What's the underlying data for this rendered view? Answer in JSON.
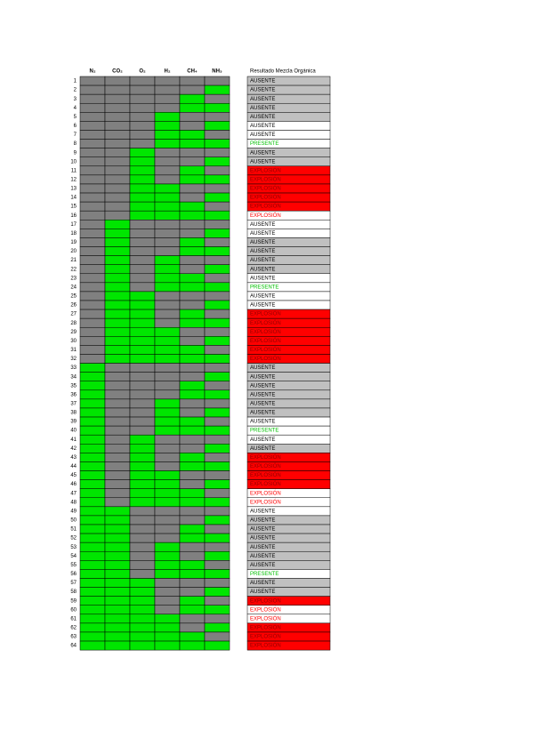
{
  "table": {
    "headers": [
      "N₂",
      "CO₂",
      "O₂",
      "H₂",
      "CH₄",
      "NH₃"
    ],
    "result_header": "Resultado Mezcla Orgánica",
    "colors": {
      "on": "#00e600",
      "off": "#808080"
    },
    "rows": [
      {
        "n": 1,
        "cells": [
          0,
          0,
          0,
          0,
          0,
          0
        ],
        "result": "AUSENTE",
        "bg": "#c0c0c0",
        "fg": "#000000"
      },
      {
        "n": 2,
        "cells": [
          0,
          0,
          0,
          0,
          0,
          1
        ],
        "result": "AUSENTE",
        "bg": "#c0c0c0",
        "fg": "#000000"
      },
      {
        "n": 3,
        "cells": [
          0,
          0,
          0,
          0,
          1,
          0
        ],
        "result": "AUSENTE",
        "bg": "#c0c0c0",
        "fg": "#000000"
      },
      {
        "n": 4,
        "cells": [
          0,
          0,
          0,
          0,
          1,
          1
        ],
        "result": "AUSENTE",
        "bg": "#c0c0c0",
        "fg": "#000000"
      },
      {
        "n": 5,
        "cells": [
          0,
          0,
          0,
          1,
          0,
          0
        ],
        "result": "AUSENTE",
        "bg": "#c0c0c0",
        "fg": "#000000"
      },
      {
        "n": 6,
        "cells": [
          0,
          0,
          0,
          1,
          0,
          1
        ],
        "result": "AUSENTE",
        "bg": "#ffffff",
        "fg": "#000000"
      },
      {
        "n": 7,
        "cells": [
          0,
          0,
          0,
          1,
          1,
          0
        ],
        "result": "AUSENTE",
        "bg": "#ffffff",
        "fg": "#000000"
      },
      {
        "n": 8,
        "cells": [
          0,
          0,
          0,
          1,
          1,
          1
        ],
        "result": "PRESENTE",
        "bg": "#ffffff",
        "fg": "#00c000"
      },
      {
        "n": 9,
        "cells": [
          0,
          0,
          1,
          0,
          0,
          0
        ],
        "result": "AUSENTE",
        "bg": "#c0c0c0",
        "fg": "#000000"
      },
      {
        "n": 10,
        "cells": [
          0,
          0,
          1,
          0,
          0,
          1
        ],
        "result": "AUSENTE",
        "bg": "#c0c0c0",
        "fg": "#000000"
      },
      {
        "n": 11,
        "cells": [
          0,
          0,
          1,
          0,
          1,
          0
        ],
        "result": "EXPLOSIÓN",
        "bg": "#ff0000",
        "fg": "#900000"
      },
      {
        "n": 12,
        "cells": [
          0,
          0,
          1,
          0,
          1,
          1
        ],
        "result": "EXPLOSIÓN",
        "bg": "#ff0000",
        "fg": "#900000"
      },
      {
        "n": 13,
        "cells": [
          0,
          0,
          1,
          1,
          0,
          0
        ],
        "result": "EXPLOSIÓN",
        "bg": "#ff0000",
        "fg": "#900000"
      },
      {
        "n": 14,
        "cells": [
          0,
          0,
          1,
          1,
          0,
          1
        ],
        "result": "EXPLOSIÓN",
        "bg": "#ff0000",
        "fg": "#900000"
      },
      {
        "n": 15,
        "cells": [
          0,
          0,
          1,
          1,
          1,
          0
        ],
        "result": "EXPLOSIÓN",
        "bg": "#ff0000",
        "fg": "#900000"
      },
      {
        "n": 16,
        "cells": [
          0,
          0,
          1,
          1,
          1,
          1
        ],
        "result": "EXPLOSIÓN",
        "bg": "#ffffff",
        "fg": "#ff0000"
      },
      {
        "n": 17,
        "cells": [
          0,
          1,
          0,
          0,
          0,
          0
        ],
        "result": "AUSENTE",
        "bg": "#ffffff",
        "fg": "#000000"
      },
      {
        "n": 18,
        "cells": [
          0,
          1,
          0,
          0,
          0,
          1
        ],
        "result": "AUSENTE",
        "bg": "#ffffff",
        "fg": "#000000"
      },
      {
        "n": 19,
        "cells": [
          0,
          1,
          0,
          0,
          1,
          0
        ],
        "result": "AUSENTE",
        "bg": "#c0c0c0",
        "fg": "#000000"
      },
      {
        "n": 20,
        "cells": [
          0,
          1,
          0,
          0,
          1,
          1
        ],
        "result": "AUSENTE",
        "bg": "#c0c0c0",
        "fg": "#000000"
      },
      {
        "n": 21,
        "cells": [
          0,
          1,
          0,
          1,
          0,
          0
        ],
        "result": "AUSENTE",
        "bg": "#c0c0c0",
        "fg": "#000000"
      },
      {
        "n": 22,
        "cells": [
          0,
          1,
          0,
          1,
          0,
          1
        ],
        "result": "AUSENTE",
        "bg": "#c0c0c0",
        "fg": "#000000"
      },
      {
        "n": 23,
        "cells": [
          0,
          1,
          0,
          1,
          1,
          0
        ],
        "result": "AUSENTE",
        "bg": "#ffffff",
        "fg": "#000000"
      },
      {
        "n": 24,
        "cells": [
          0,
          1,
          0,
          1,
          1,
          1
        ],
        "result": "PRESENTE",
        "bg": "#ffffff",
        "fg": "#00c000"
      },
      {
        "n": 25,
        "cells": [
          0,
          1,
          1,
          0,
          0,
          0
        ],
        "result": "AUSENTE",
        "bg": "#ffffff",
        "fg": "#000000"
      },
      {
        "n": 26,
        "cells": [
          0,
          1,
          1,
          0,
          0,
          1
        ],
        "result": "AUSENTE",
        "bg": "#ffffff",
        "fg": "#000000"
      },
      {
        "n": 27,
        "cells": [
          0,
          1,
          1,
          0,
          1,
          0
        ],
        "result": "EXPLOSIÓN",
        "bg": "#ff0000",
        "fg": "#900000"
      },
      {
        "n": 28,
        "cells": [
          0,
          1,
          1,
          0,
          1,
          1
        ],
        "result": "EXPLOSIÓN",
        "bg": "#ff0000",
        "fg": "#900000"
      },
      {
        "n": 29,
        "cells": [
          0,
          1,
          1,
          1,
          0,
          0
        ],
        "result": "EXPLOSIÓN",
        "bg": "#ff0000",
        "fg": "#900000"
      },
      {
        "n": 30,
        "cells": [
          0,
          1,
          1,
          1,
          0,
          1
        ],
        "result": "EXPLOSIÓN",
        "bg": "#ff0000",
        "fg": "#900000"
      },
      {
        "n": 31,
        "cells": [
          0,
          1,
          1,
          1,
          1,
          0
        ],
        "result": "EXPLOSIÓN",
        "bg": "#ff0000",
        "fg": "#900000"
      },
      {
        "n": 32,
        "cells": [
          0,
          1,
          1,
          1,
          1,
          1
        ],
        "result": "EXPLOSIÓN",
        "bg": "#ff0000",
        "fg": "#900000"
      },
      {
        "n": 33,
        "cells": [
          1,
          0,
          0,
          0,
          0,
          0
        ],
        "result": "AUSENTE",
        "bg": "#c0c0c0",
        "fg": "#000000"
      },
      {
        "n": 34,
        "cells": [
          1,
          0,
          0,
          0,
          0,
          1
        ],
        "result": "AUSENTE",
        "bg": "#c0c0c0",
        "fg": "#000000"
      },
      {
        "n": 35,
        "cells": [
          1,
          0,
          0,
          0,
          1,
          0
        ],
        "result": "AUSENTE",
        "bg": "#c0c0c0",
        "fg": "#000000"
      },
      {
        "n": 36,
        "cells": [
          1,
          0,
          0,
          0,
          1,
          1
        ],
        "result": "AUSENTE",
        "bg": "#c0c0c0",
        "fg": "#000000"
      },
      {
        "n": 37,
        "cells": [
          1,
          0,
          0,
          1,
          0,
          0
        ],
        "result": "AUSENTE",
        "bg": "#c0c0c0",
        "fg": "#000000"
      },
      {
        "n": 38,
        "cells": [
          1,
          0,
          0,
          1,
          0,
          1
        ],
        "result": "AUSENTE",
        "bg": "#c0c0c0",
        "fg": "#000000"
      },
      {
        "n": 39,
        "cells": [
          1,
          0,
          0,
          1,
          1,
          0
        ],
        "result": "AUSENTE",
        "bg": "#ffffff",
        "fg": "#000000"
      },
      {
        "n": 40,
        "cells": [
          1,
          0,
          0,
          1,
          1,
          1
        ],
        "result": "PRESENTE",
        "bg": "#ffffff",
        "fg": "#00c000"
      },
      {
        "n": 41,
        "cells": [
          1,
          0,
          1,
          0,
          0,
          0
        ],
        "result": "AUSENTE",
        "bg": "#ffffff",
        "fg": "#000000"
      },
      {
        "n": 42,
        "cells": [
          1,
          0,
          1,
          0,
          0,
          1
        ],
        "result": "AUSENTE",
        "bg": "#c0c0c0",
        "fg": "#000000"
      },
      {
        "n": 43,
        "cells": [
          1,
          0,
          1,
          0,
          1,
          0
        ],
        "result": "EXPLOSIÓN",
        "bg": "#ff0000",
        "fg": "#900000"
      },
      {
        "n": 44,
        "cells": [
          1,
          0,
          1,
          0,
          1,
          1
        ],
        "result": "EXPLOSIÓN",
        "bg": "#ff0000",
        "fg": "#900000"
      },
      {
        "n": 45,
        "cells": [
          1,
          0,
          1,
          1,
          0,
          0
        ],
        "result": "EXPLOSIÓN",
        "bg": "#ff0000",
        "fg": "#900000"
      },
      {
        "n": 46,
        "cells": [
          1,
          0,
          1,
          1,
          0,
          1
        ],
        "result": "EXPLOSIÓN",
        "bg": "#ff0000",
        "fg": "#900000"
      },
      {
        "n": 47,
        "cells": [
          1,
          0,
          1,
          1,
          1,
          0
        ],
        "result": "EXPLOSIÓN",
        "bg": "#ffffff",
        "fg": "#ff0000"
      },
      {
        "n": 48,
        "cells": [
          1,
          0,
          1,
          1,
          1,
          1
        ],
        "result": "EXPLOSIÓN",
        "bg": "#ffffff",
        "fg": "#ff0000"
      },
      {
        "n": 49,
        "cells": [
          1,
          1,
          0,
          0,
          0,
          0
        ],
        "result": "AUSENTE",
        "bg": "#ffffff",
        "fg": "#000000"
      },
      {
        "n": 50,
        "cells": [
          1,
          1,
          0,
          0,
          0,
          1
        ],
        "result": "AUSENTE",
        "bg": "#c0c0c0",
        "fg": "#000000"
      },
      {
        "n": 51,
        "cells": [
          1,
          1,
          0,
          0,
          1,
          0
        ],
        "result": "AUSENTE",
        "bg": "#c0c0c0",
        "fg": "#000000"
      },
      {
        "n": 52,
        "cells": [
          1,
          1,
          0,
          0,
          1,
          1
        ],
        "result": "AUSENTE",
        "bg": "#c0c0c0",
        "fg": "#000000"
      },
      {
        "n": 53,
        "cells": [
          1,
          1,
          0,
          1,
          0,
          0
        ],
        "result": "AUSENTE",
        "bg": "#c0c0c0",
        "fg": "#000000"
      },
      {
        "n": 54,
        "cells": [
          1,
          1,
          0,
          1,
          0,
          1
        ],
        "result": "AUSENTE",
        "bg": "#c0c0c0",
        "fg": "#000000"
      },
      {
        "n": 55,
        "cells": [
          1,
          1,
          0,
          1,
          1,
          0
        ],
        "result": "AUSENTE",
        "bg": "#c0c0c0",
        "fg": "#000000"
      },
      {
        "n": 56,
        "cells": [
          1,
          1,
          0,
          1,
          1,
          1
        ],
        "result": "PRESENTE",
        "bg": "#ffffff",
        "fg": "#00c000"
      },
      {
        "n": 57,
        "cells": [
          1,
          1,
          1,
          0,
          0,
          0
        ],
        "result": "AUSENTE",
        "bg": "#c0c0c0",
        "fg": "#000000"
      },
      {
        "n": 58,
        "cells": [
          1,
          1,
          1,
          0,
          0,
          1
        ],
        "result": "AUSENTE",
        "bg": "#c0c0c0",
        "fg": "#000000"
      },
      {
        "n": 59,
        "cells": [
          1,
          1,
          1,
          0,
          1,
          0
        ],
        "result": "EXPLOSIÓN",
        "bg": "#ff0000",
        "fg": "#900000"
      },
      {
        "n": 60,
        "cells": [
          1,
          1,
          1,
          0,
          1,
          1
        ],
        "result": "EXPLOSIÓN",
        "bg": "#ffffff",
        "fg": "#ff0000"
      },
      {
        "n": 61,
        "cells": [
          1,
          1,
          1,
          1,
          0,
          0
        ],
        "result": "EXPLOSIÓN",
        "bg": "#ffffff",
        "fg": "#ff0000"
      },
      {
        "n": 62,
        "cells": [
          1,
          1,
          1,
          1,
          0,
          1
        ],
        "result": "EXPLOSIÓN",
        "bg": "#ff0000",
        "fg": "#900000"
      },
      {
        "n": 63,
        "cells": [
          1,
          1,
          1,
          1,
          1,
          0
        ],
        "result": "EXPLOSIÓN",
        "bg": "#ff0000",
        "fg": "#900000"
      },
      {
        "n": 64,
        "cells": [
          1,
          1,
          1,
          1,
          1,
          1
        ],
        "result": "EXPLOSIÓN",
        "bg": "#ff0000",
        "fg": "#900000"
      }
    ]
  }
}
